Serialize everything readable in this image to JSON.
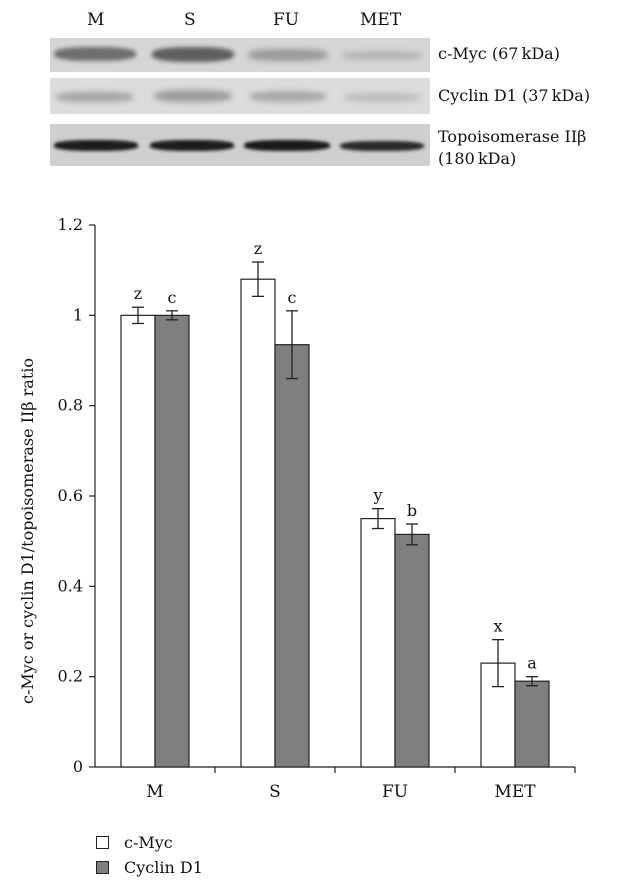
{
  "blot": {
    "lanes": [
      "M",
      "S",
      "FU",
      "MET"
    ],
    "proteins": [
      {
        "label": "c-Myc (67 kDa)"
      },
      {
        "label": "Cyclin D1 (37 kDa)"
      },
      {
        "label": "Topoisomerase IIβ",
        "label2": "(180 kDa)"
      }
    ]
  },
  "chart_data": {
    "type": "bar",
    "ylabel": "c-Myc or cyclin D1/topoisomerase IIβ ratio",
    "xlabel": "",
    "categories": [
      "M",
      "S",
      "FU",
      "MET"
    ],
    "ylim": [
      0,
      1.2
    ],
    "yticks": [
      "0",
      "0.2",
      "0.4",
      "0.6",
      "0.8",
      "1",
      "1.2"
    ],
    "grid": false,
    "legend_position": "bottom-left",
    "series": [
      {
        "name": "c-Myc",
        "color": "#ffffff",
        "values": [
          1.0,
          1.08,
          0.55,
          0.23
        ],
        "errors": [
          0.018,
          0.038,
          0.022,
          0.052
        ],
        "letters": [
          "z",
          "z",
          "y",
          "x"
        ]
      },
      {
        "name": "Cyclin D1",
        "color": "#7f7f7f",
        "values": [
          1.0,
          0.935,
          0.515,
          0.19
        ],
        "errors": [
          0.01,
          0.075,
          0.023,
          0.01
        ],
        "letters": [
          "c",
          "c",
          "b",
          "a"
        ]
      }
    ]
  }
}
